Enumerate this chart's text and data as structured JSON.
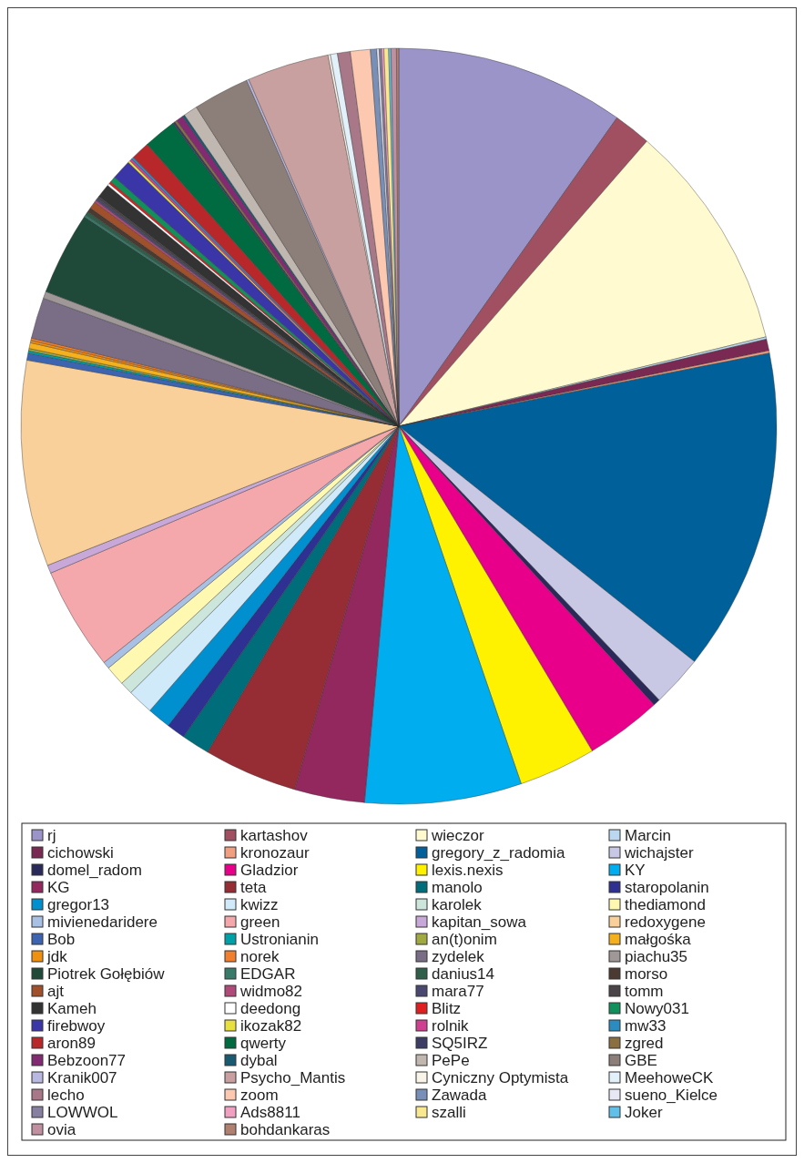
{
  "chart_data": {
    "type": "pie",
    "legend": "bottom",
    "categories": [
      "rj",
      "kartashov",
      "wieczor",
      "Marcin",
      "cichowski",
      "kronozaur",
      "gregory_z_radomia",
      "wichajster",
      "domel_radom",
      "Gladzior",
      "lexis.nexis",
      "KY",
      "KG",
      "teta",
      "manolo",
      "staropolanin",
      "gregor13",
      "kwizz",
      "karolek",
      "thediamond",
      "mivienedaridere",
      "green",
      "kapitan_sowa",
      "redoxygene",
      "Bob",
      "Ustronianin",
      "an(t)onim",
      "małgośka",
      "jdk",
      "norek",
      "zydelek",
      "piachu35",
      "Piotrek Gołębiów",
      "EDGAR",
      "danius14",
      "morso",
      "ajt",
      "widmo82",
      "mara77",
      "tomm",
      "Kameh",
      "deedong",
      "Blitz",
      "Nowy031",
      "firebwoy",
      "ikozak82",
      "rolnik",
      "mw33",
      "aron89",
      "qwerty",
      "SQ5IRZ",
      "zgred",
      "Bebzoon77",
      "dybal",
      "PePe",
      "GBE",
      "Kranik007",
      "Psycho_Mantis",
      "Cyniczny Optymista",
      "MeehoweCK",
      "lecho",
      "zoom",
      "Zawada",
      "sueno_Kielce",
      "LOWWOL",
      "Ads8811",
      "szalli",
      "Joker",
      "ovia",
      "bohdankaras"
    ],
    "values": [
      9.8,
      1.6,
      9.8,
      0.1,
      0.5,
      0.1,
      13.8,
      2.2,
      0.3,
      3.25,
      3.3,
      6.7,
      3,
      4,
      1.2,
      0.8,
      1,
      1.1,
      0.55,
      0.85,
      0.3,
      4.4,
      0.35,
      8.8,
      0.3,
      0.1,
      0.1,
      0.25,
      0.1,
      0.1,
      1.75,
      0.3,
      3.55,
      0.1,
      0.15,
      0.2,
      0.3,
      0.1,
      0.1,
      0.1,
      0.6,
      0.1,
      0.1,
      0.25,
      0.85,
      0.1,
      0.1,
      0.1,
      0.8,
      1.4,
      0.1,
      0.1,
      0.3,
      0.1,
      0.6,
      2.4,
      0.1,
      3.5,
      0.1,
      0.3,
      0.55,
      0.85,
      0.27,
      0.1,
      0.1,
      0.1,
      0.2,
      0.1,
      0.23,
      0.1
    ],
    "colors": [
      "#9b94c8",
      "#a05060",
      "#fffad0",
      "#bcd8f0",
      "#7a2a52",
      "#f0a080",
      "#00609a",
      "#c8c8e4",
      "#2a2a5a",
      "#e8008a",
      "#fff200",
      "#00aeef",
      "#92285e",
      "#962c34",
      "#006d7a",
      "#2e3192",
      "#0090d0",
      "#d0eafa",
      "#cce6dc",
      "#fff8b0",
      "#a8c0e4",
      "#f4a8ab",
      "#c8a8d8",
      "#f9cf9a",
      "#3c64b0",
      "#00a0a8",
      "#a0aa40",
      "#f5b01e",
      "#f09010",
      "#f08030",
      "#7a6e86",
      "#a09898",
      "#1f4a3a",
      "#3a7a6a",
      "#2f5e4a",
      "#4a3a32",
      "#a0502a",
      "#b04a78",
      "#4a4870",
      "#4a4448",
      "#333333",
      "#ffffff",
      "#e02020",
      "#10905a",
      "#3a36a8",
      "#e8e040",
      "#d04090",
      "#2a8cc0",
      "#b8282a",
      "#006a40",
      "#3c3c64",
      "#8a7040",
      "#822a72",
      "#1a5a70",
      "#c0b8b0",
      "#8c7e78",
      "#b8b8e0",
      "#c8a0a0",
      "#f8f4e8",
      "#e2f0fa",
      "#a87888",
      "#fcc8b0",
      "#7890b8",
      "#e8e8f4",
      "#8880a0",
      "#f0a0c0",
      "#f8e890",
      "#60c0e8",
      "#c090a0",
      "#b08070"
    ]
  }
}
